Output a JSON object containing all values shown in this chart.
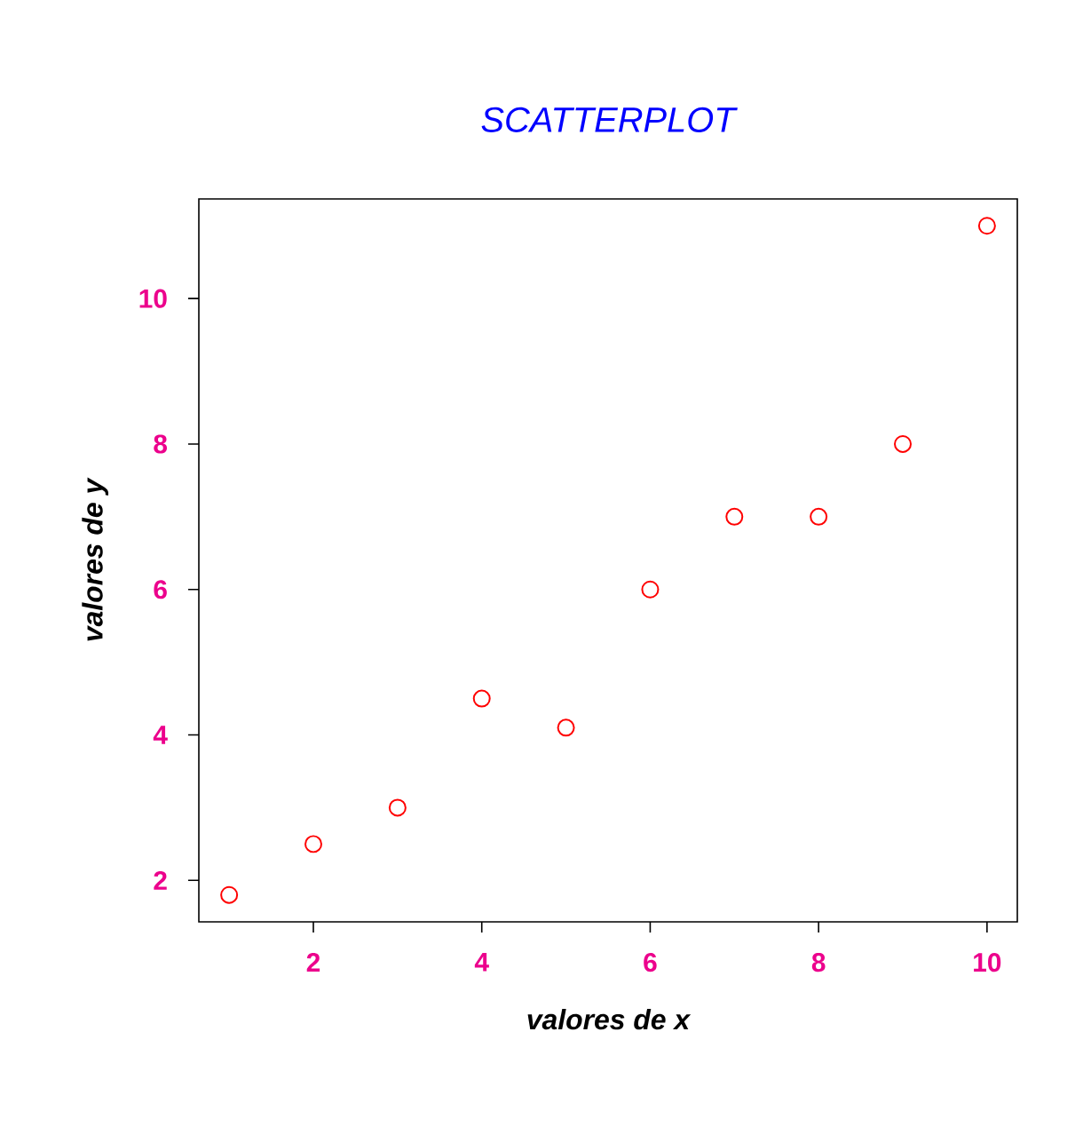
{
  "chart_data": {
    "type": "scatter",
    "title": "SCATTERPLOT",
    "xlabel": "valores de x",
    "ylabel": "valores de y",
    "x": [
      1,
      2,
      3,
      4,
      5,
      6,
      7,
      8,
      9,
      10
    ],
    "series": [
      {
        "color": "#ff0000",
        "values": [
          1.8,
          2.5,
          3,
          4.5,
          4.1,
          6,
          7,
          7,
          8,
          11
        ]
      }
    ],
    "xlim": [
      0.64,
      10.36
    ],
    "ylim": [
      1.43,
      11.37
    ],
    "xticks": [
      2,
      4,
      6,
      8,
      10
    ],
    "yticks": [
      2,
      4,
      6,
      8,
      10
    ],
    "marker": "circle",
    "grid": false
  }
}
